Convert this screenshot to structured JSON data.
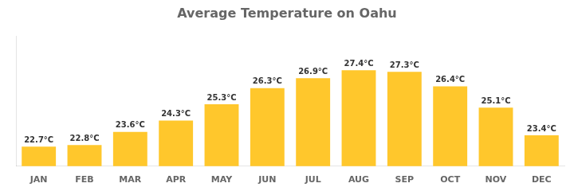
{
  "chart_data": {
    "type": "bar",
    "title": "Average Temperature on Oahu",
    "categories": [
      "JAN",
      "FEB",
      "MAR",
      "APR",
      "MAY",
      "JUN",
      "JUL",
      "AUG",
      "SEP",
      "OCT",
      "NOV",
      "DEC"
    ],
    "values": [
      22.7,
      22.8,
      23.6,
      24.3,
      25.3,
      26.3,
      26.9,
      27.4,
      27.3,
      26.4,
      25.1,
      23.4
    ],
    "value_labels": [
      "22.7°C",
      "22.8°C",
      "23.6°C",
      "24.3°C",
      "25.3°C",
      "26.3°C",
      "26.9°C",
      "27.4°C",
      "27.3°C",
      "26.4°C",
      "25.1°C",
      "23.4°C"
    ],
    "data_labels": true,
    "color": "#FFC72C",
    "ylim": [
      21.5,
      29.5
    ],
    "grid": false,
    "tick_labels": "x"
  }
}
